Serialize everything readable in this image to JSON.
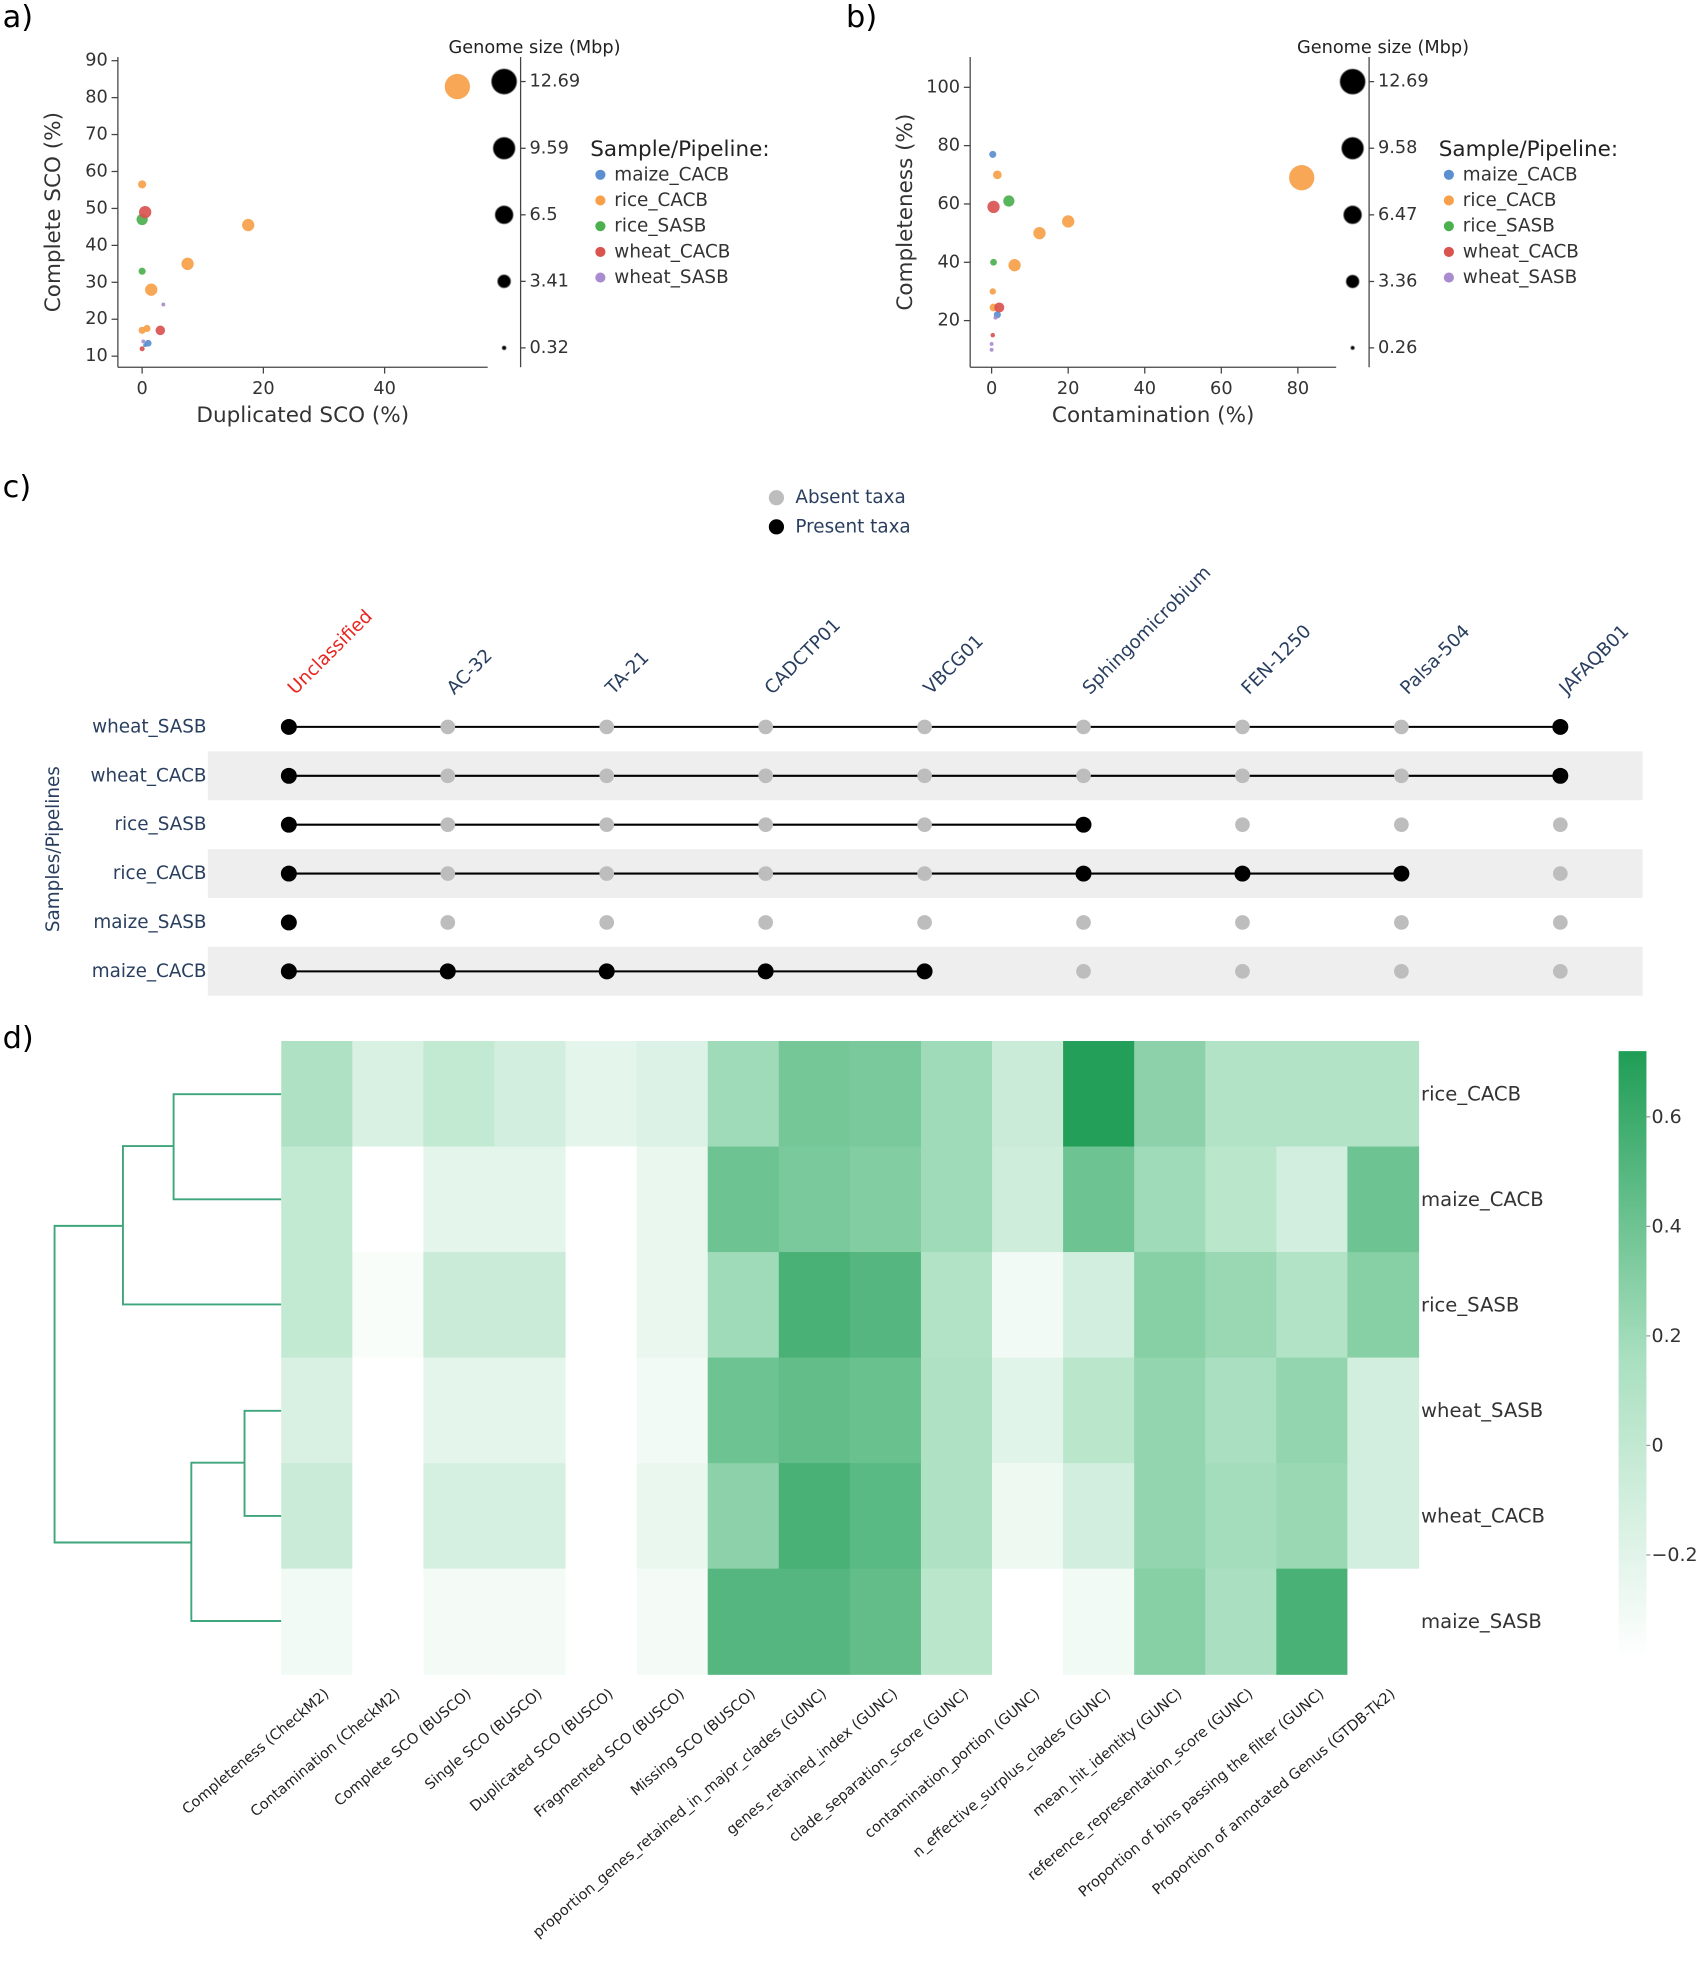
{
  "chart_data": [
    {
      "type": "bubble",
      "panel_label": "a)",
      "xlabel": "Duplicated SCO (%)",
      "ylabel": "Complete SCO (%)",
      "xlim": [
        -4,
        57
      ],
      "ylim": [
        7,
        91
      ],
      "xticks": [
        0,
        20,
        40
      ],
      "yticks": [
        10,
        20,
        30,
        40,
        50,
        60,
        70,
        80,
        90
      ],
      "size_title": "Genome size (Mbp)",
      "size_lim": [
        -0.58,
        13.83
      ],
      "size_ticks": [
        12.69,
        9.59,
        6.5,
        3.41,
        0.32
      ],
      "legend_title": "Sample/Pipeline:",
      "series": [
        {
          "name": "maize_CACB",
          "color": "#5b8fd0",
          "x": [
            1,
            0.5
          ],
          "y": [
            13.5,
            13
          ],
          "size": [
            0.9,
            0.3
          ]
        },
        {
          "name": "rice_CACB",
          "color": "#f7a049",
          "x": [
            52,
            17.5,
            7.5,
            1.5,
            0,
            0,
            0.8
          ],
          "y": [
            83,
            45.5,
            35,
            28,
            56.5,
            17,
            17.5
          ],
          "size": [
            12.69,
            3.0,
            3.0,
            3.0,
            1.3,
            1.0,
            1.0
          ]
        },
        {
          "name": "rice_SASB",
          "color": "#4cb04f",
          "x": [
            0,
            0
          ],
          "y": [
            47,
            33
          ],
          "size": [
            2.5,
            1.0
          ]
        },
        {
          "name": "wheat_CACB",
          "color": "#d9534f",
          "x": [
            0.5,
            3,
            0
          ],
          "y": [
            49,
            17,
            12
          ],
          "size": [
            3.0,
            1.8,
            0.5
          ]
        },
        {
          "name": "wheat_SASB",
          "color": "#a98bd0",
          "x": [
            3.5,
            0.2
          ],
          "y": [
            24,
            14
          ],
          "size": [
            0.3,
            0.3
          ]
        }
      ]
    },
    {
      "type": "bubble",
      "panel_label": "b)",
      "xlabel": "Contamination (%)",
      "ylabel": "Completeness (%)",
      "xlim": [
        -5.6,
        90
      ],
      "ylim": [
        4,
        110.4
      ],
      "xticks": [
        0,
        20,
        40,
        60,
        80
      ],
      "yticks": [
        20,
        40,
        60,
        80,
        100
      ],
      "size_title": "Genome size (Mbp)",
      "size_lim": [
        -0.645,
        13.84
      ],
      "size_ticks": [
        12.69,
        9.58,
        6.47,
        3.36,
        0.26
      ],
      "legend_title": "Sample/Pipeline:",
      "series": [
        {
          "name": "maize_CACB",
          "color": "#5b8fd0",
          "x": [
            0.3,
            1.5
          ],
          "y": [
            77,
            22
          ],
          "size": [
            1.0,
            1.0
          ]
        },
        {
          "name": "rice_CACB",
          "color": "#f7a049",
          "x": [
            81,
            20,
            12.5,
            6,
            1.5,
            0.3,
            0.5
          ],
          "y": [
            69,
            54,
            50,
            39,
            70,
            30,
            24.5
          ],
          "size": [
            12.69,
            3.0,
            3.0,
            3.0,
            1.5,
            0.8,
            1.2
          ]
        },
        {
          "name": "rice_SASB",
          "color": "#4cb04f",
          "x": [
            4.5,
            0.5
          ],
          "y": [
            61,
            40
          ],
          "size": [
            2.5,
            0.9
          ]
        },
        {
          "name": "wheat_CACB",
          "color": "#d9534f",
          "x": [
            0.5,
            2,
            0.3
          ],
          "y": [
            59,
            24.5,
            15
          ],
          "size": [
            3.0,
            2.0,
            0.4
          ]
        },
        {
          "name": "wheat_SASB",
          "color": "#a98bd0",
          "x": [
            1,
            0,
            0
          ],
          "y": [
            21,
            12,
            10
          ],
          "size": [
            0.3,
            0.3,
            0.3
          ]
        }
      ]
    },
    {
      "type": "dot_matrix",
      "panel_label": "c)",
      "ylabel": "Samples/Pipelines",
      "categories": [
        "Unclassified",
        "AC-32",
        "TA-21",
        "CADCTP01",
        "VBCG01",
        "Sphingomicrobium",
        "FEN-1250",
        "Palsa-504",
        "JAFAQB01"
      ],
      "label_colors": [
        "#e8251f",
        "#2a3f5f",
        "#2a3f5f",
        "#2a3f5f",
        "#2a3f5f",
        "#2a3f5f",
        "#2a3f5f",
        "#2a3f5f",
        "#2a3f5f"
      ],
      "legend": [
        "Absent taxa",
        "Present taxa"
      ],
      "colors": [
        "#bdbdbd",
        "#000000"
      ],
      "series": [
        {
          "name": "wheat_SASB",
          "values": [
            1,
            0,
            0,
            0,
            0,
            0,
            0,
            0,
            1
          ]
        },
        {
          "name": "wheat_CACB",
          "values": [
            1,
            0,
            0,
            0,
            0,
            0,
            0,
            0,
            1
          ]
        },
        {
          "name": "rice_SASB",
          "values": [
            1,
            0,
            0,
            0,
            0,
            1,
            0,
            0,
            0
          ]
        },
        {
          "name": "rice_CACB",
          "values": [
            1,
            0,
            0,
            0,
            0,
            1,
            1,
            1,
            0
          ]
        },
        {
          "name": "maize_SASB",
          "values": [
            1,
            0,
            0,
            0,
            0,
            0,
            0,
            0,
            0
          ]
        },
        {
          "name": "maize_CACB",
          "values": [
            1,
            1,
            1,
            1,
            1,
            0,
            0,
            0,
            0
          ]
        }
      ]
    },
    {
      "type": "heatmap",
      "panel_label": "d)",
      "x": [
        "Completeness (CheckM2)",
        "Contamination (CheckM2)",
        "Complete SCO (BUSCO)",
        "Single SCO (BUSCO)",
        "Duplicated SCO (BUSCO)",
        "Fragmented SCO (BUSCO)",
        "Missing SCO (BUSCO)",
        "proportion_genes_retained_in_major_clades (GUNC)",
        "genes_retained_index (GUNC)",
        "clade_separation_score (GUNC)",
        "contamination_portion (GUNC)",
        "n_effective_surplus_clades (GUNC)",
        "mean_hit_identity (GUNC)",
        "reference_representation_score (GUNC)",
        "Proportion of bins passing the filter (GUNC)",
        "Proportion of annotated Genus (GTDB-Tk2)"
      ],
      "y": [
        "rice_CACB",
        "maize_CACB",
        "rice_SASB",
        "wheat_SASB",
        "wheat_CACB",
        "maize_SASB"
      ],
      "z": [
        [
          0.12,
          -0.15,
          0.0,
          -0.1,
          -0.22,
          -0.17,
          0.2,
          0.37,
          0.35,
          0.2,
          -0.05,
          0.7,
          0.28,
          0.1,
          0.1,
          0.1
        ],
        [
          0.0,
          -0.39,
          -0.22,
          -0.22,
          -0.39,
          -0.25,
          0.4,
          0.35,
          0.32,
          0.2,
          -0.08,
          0.4,
          0.2,
          0.05,
          -0.1,
          0.4
        ],
        [
          0.0,
          -0.35,
          -0.05,
          -0.05,
          -0.39,
          -0.25,
          0.2,
          0.55,
          0.5,
          0.1,
          -0.3,
          -0.1,
          0.3,
          0.22,
          0.1,
          0.3
        ],
        [
          -0.15,
          -0.39,
          -0.22,
          -0.22,
          -0.39,
          -0.3,
          0.4,
          0.45,
          0.42,
          0.12,
          -0.2,
          0.05,
          0.25,
          0.15,
          0.25,
          -0.1
        ],
        [
          -0.05,
          -0.39,
          -0.12,
          -0.12,
          -0.39,
          -0.25,
          0.28,
          0.55,
          0.48,
          0.12,
          -0.28,
          -0.1,
          0.25,
          0.18,
          0.22,
          -0.1
        ],
        [
          -0.3,
          -0.39,
          -0.32,
          -0.32,
          -0.39,
          -0.32,
          0.5,
          0.5,
          0.45,
          0.05,
          -0.39,
          -0.3,
          0.3,
          0.15,
          0.55,
          -0.39
        ]
      ],
      "zlim": [
        -0.39,
        0.72
      ],
      "zticks": [
        {
          "value": -0.2,
          "label": "−0.2"
        },
        0,
        0.2,
        0.4,
        0.6
      ],
      "colorscale": [
        "#ffffff",
        "#a8dfbf",
        "#1f9d55"
      ]
    }
  ]
}
